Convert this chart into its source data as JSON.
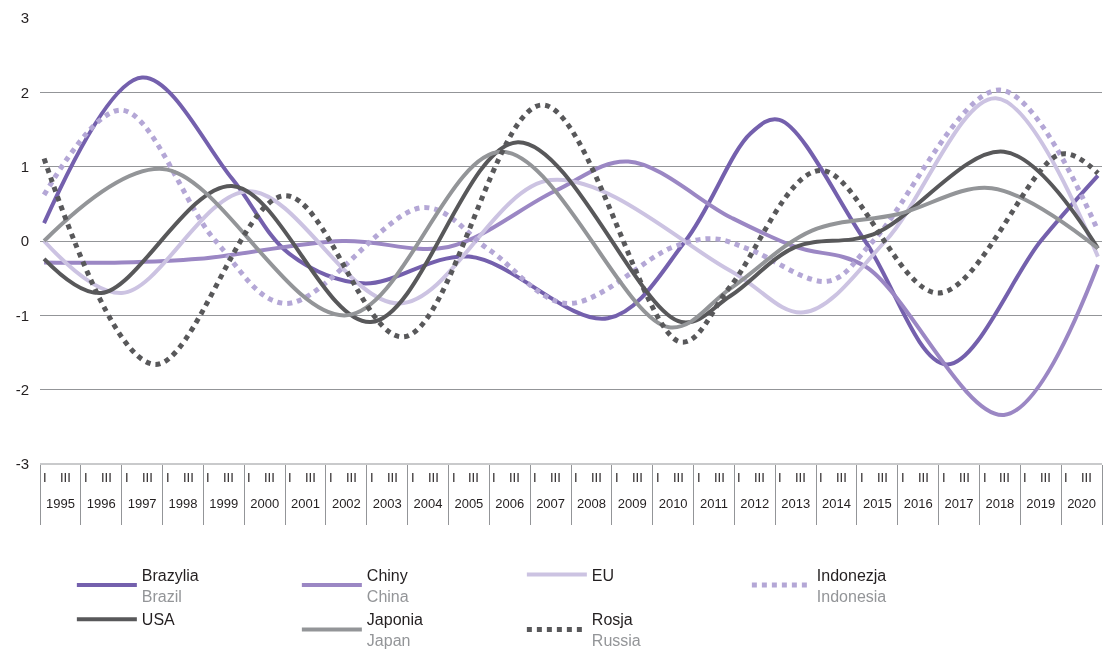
{
  "chart_data": {
    "type": "line",
    "xlim": [
      1995,
      2021
    ],
    "ylim": [
      -3,
      3
    ],
    "yticks": [
      -3,
      -2,
      -1,
      0,
      1,
      2,
      3
    ],
    "grid": "y",
    "legend": "bottom",
    "marker": "none",
    "annotations": [
      "I",
      "III",
      "I",
      "III",
      "I",
      "III",
      "I",
      "III",
      "I",
      "III",
      "I",
      "III",
      "I",
      "III",
      "I",
      "III",
      "I",
      "III",
      "I",
      "III",
      "I",
      "III",
      "I",
      "III",
      "I",
      "III",
      "I",
      "III",
      "I",
      "III",
      "I",
      "III",
      "I",
      "III",
      "I",
      "III",
      "I",
      "III",
      "I",
      "III",
      "I",
      "III",
      "I",
      "III",
      "I",
      "III",
      "I",
      "III",
      "I",
      "III",
      "I",
      "III"
    ],
    "xticks": [
      {
        "value": 1995.5,
        "label": "1995"
      },
      {
        "value": 1996.5,
        "label": "1996"
      },
      {
        "value": 1997.5,
        "label": "1997"
      },
      {
        "value": 1998.5,
        "label": "1998"
      },
      {
        "value": 1999.5,
        "label": "1999"
      },
      {
        "value": 2000.5,
        "label": "2000"
      },
      {
        "value": 2001.5,
        "label": "2001"
      },
      {
        "value": 2002.5,
        "label": "2002"
      },
      {
        "value": 2003.5,
        "label": "2003"
      },
      {
        "value": 2004.5,
        "label": "2004"
      },
      {
        "value": 2005.5,
        "label": "2005"
      },
      {
        "value": 2006.5,
        "label": "2006"
      },
      {
        "value": 2007.5,
        "label": "2007"
      },
      {
        "value": 2008.5,
        "label": "2008"
      },
      {
        "value": 2009.5,
        "label": "2009"
      },
      {
        "value": 2010.5,
        "label": "2010"
      },
      {
        "value": 2011.5,
        "label": "2011"
      },
      {
        "value": 2012.5,
        "label": "2012"
      },
      {
        "value": 2013.5,
        "label": "2013"
      },
      {
        "value": 2014.5,
        "label": "2014"
      },
      {
        "value": 2015.5,
        "label": "2015"
      },
      {
        "value": 2016.5,
        "label": "2016"
      },
      {
        "value": 2017.5,
        "label": "2017"
      },
      {
        "value": 2018.5,
        "label": "2018"
      },
      {
        "value": 2019.5,
        "label": "2019"
      },
      {
        "value": 2020.5,
        "label": "2020"
      }
    ],
    "series": [
      {
        "name": "Brazylia\nBrazil",
        "color": "#7460ad",
        "line_style": "solid",
        "x": [
          1995.1,
          1997.5,
          1999.7,
          2001.1,
          2002.9,
          2005.5,
          2008.9,
          2010.8,
          2012.4,
          2013.1,
          2015.2,
          2017.2,
          2019.5,
          2020.9
        ],
        "values": [
          0.24,
          2.2,
          0.84,
          -0.17,
          -0.57,
          -0.21,
          -1.04,
          0.0,
          1.45,
          1.63,
          0.0,
          -1.66,
          0.0,
          0.88
        ]
      },
      {
        "name": "Chiny\nChina",
        "color": "#9b87c4",
        "line_style": "solid",
        "x": [
          1995.1,
          1997.0,
          1998.9,
          2002.4,
          2005.0,
          2007.6,
          2009.4,
          2011.9,
          2013.5,
          2015.2,
          2018.6,
          2020.9
        ],
        "values": [
          -0.29,
          -0.29,
          -0.24,
          0.0,
          -0.08,
          0.67,
          1.07,
          0.32,
          -0.08,
          -0.34,
          -2.34,
          -0.32
        ]
      },
      {
        "name": "EU",
        "color": "#ccc3e2",
        "line_style": "solid",
        "x": [
          1995.1,
          1997.0,
          2000.1,
          2003.8,
          2007.5,
          2011.9,
          2013.7,
          2015.7,
          2018.4,
          2020.9
        ],
        "values": [
          0.0,
          -0.7,
          0.67,
          -0.84,
          0.82,
          -0.4,
          -0.96,
          0.0,
          1.92,
          -0.21
        ]
      },
      {
        "name": "Indonezja\nIndonesia",
        "color": "#b4a7d6",
        "line_style": "dotted",
        "x": [
          1995.1,
          1997.0,
          1999.3,
          2001.0,
          2004.4,
          2006.0,
          2007.9,
          2010.5,
          2011.5,
          2012.4,
          2014.3,
          2015.4,
          2018.5,
          2020.9
        ],
        "values": [
          0.62,
          1.76,
          0.0,
          -0.84,
          0.45,
          -0.12,
          -0.84,
          -0.08,
          0.03,
          -0.12,
          -0.54,
          0.0,
          2.03,
          0.14
        ]
      },
      {
        "name": "USA",
        "color": "#58585a",
        "line_style": "solid",
        "x": [
          1995.1,
          1996.5,
          1999.7,
          2003.1,
          2006.7,
          2010.7,
          2011.9,
          2013.5,
          2015.4,
          2018.6,
          2020.9
        ],
        "values": [
          -0.24,
          -0.7,
          0.74,
          -1.09,
          1.33,
          -1.09,
          -0.74,
          -0.08,
          0.09,
          1.2,
          -0.1
        ]
      },
      {
        "name": "Japonia\nJapan",
        "color": "#939598",
        "line_style": "solid",
        "x": [
          1995.1,
          1998.0,
          2002.5,
          2006.3,
          2010.4,
          2011.9,
          2013.9,
          2016.0,
          2018.3,
          2020.9
        ],
        "values": [
          0.0,
          0.97,
          -1.0,
          1.2,
          -1.16,
          -0.64,
          0.14,
          0.36,
          0.71,
          -0.1
        ]
      },
      {
        "name": "Rosja\nRussia",
        "color": "#58585a",
        "line_style": "dotted",
        "x": [
          1995.1,
          1997.8,
          2001.0,
          2003.9,
          2007.3,
          2010.7,
          2011.9,
          2014.1,
          2017.0,
          2020.0,
          2020.9
        ],
        "values": [
          1.11,
          -1.66,
          0.61,
          -1.29,
          1.83,
          -1.36,
          -0.61,
          0.95,
          -0.7,
          1.17,
          0.91
        ]
      }
    ]
  }
}
